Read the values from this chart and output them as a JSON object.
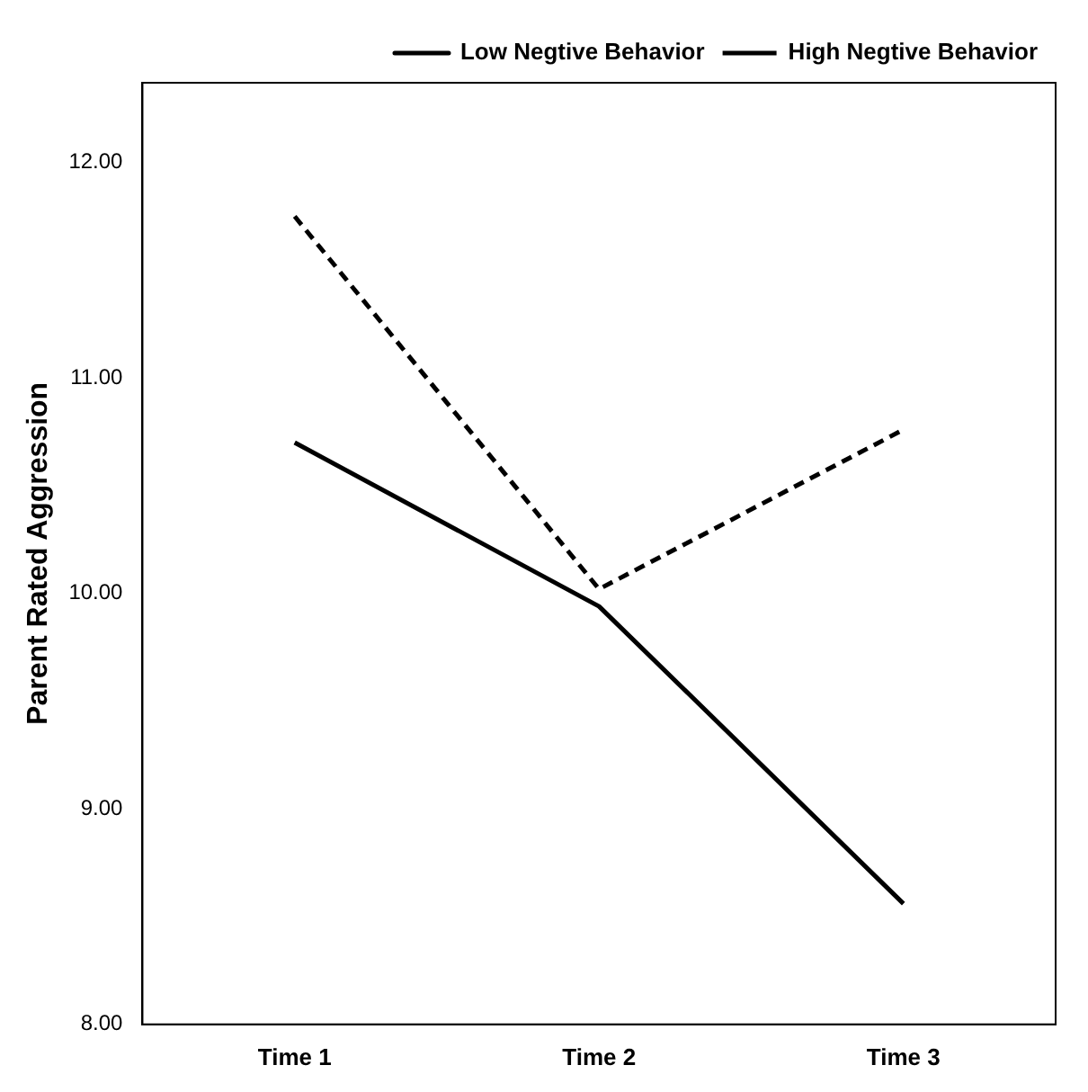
{
  "chart_data": {
    "type": "line",
    "ylabel": "Parent Rated Aggression",
    "categories": [
      "Time 1",
      "Time 2",
      "Time 3"
    ],
    "series": [
      {
        "name": "Low Negtive Behavior",
        "color": "#000000",
        "values": [
          10.7,
          9.94,
          8.56
        ],
        "line_style": "solid"
      },
      {
        "name": "High Negtive Behavior",
        "color": "#000000",
        "values": [
          11.75,
          10.02,
          10.76
        ],
        "line_style": "dashed"
      }
    ],
    "ylim": [
      8,
      12.37
    ],
    "yticks": [
      {
        "value": 8,
        "label": "8.00"
      },
      {
        "value": 9,
        "label": "9.00"
      },
      {
        "value": 10,
        "label": "10.00"
      },
      {
        "value": 11,
        "label": "11.00"
      },
      {
        "value": 12,
        "label": "12.00"
      }
    ],
    "grid": false,
    "legend": "top right",
    "marker": "none"
  }
}
